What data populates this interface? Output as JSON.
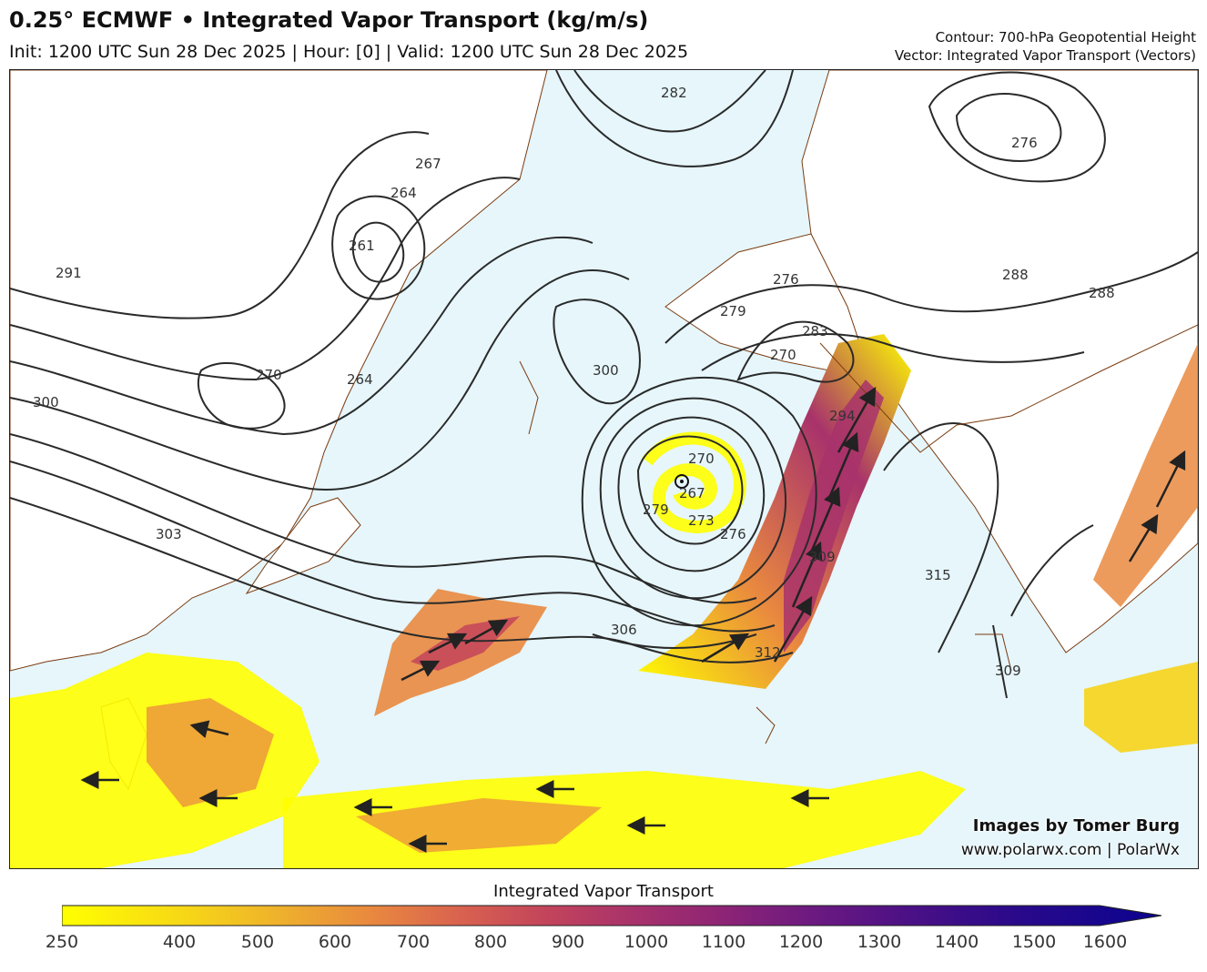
{
  "header": {
    "title": "0.25° ECMWF • Integrated Vapor Transport (kg/m/s)",
    "subtitle": "Init: 1200 UTC Sun 28 Dec 2025 | Hour: [0] | Valid: 1200 UTC Sun 28 Dec 2025",
    "contour_info": "Contour: 700-hPa Geopotential Height",
    "vector_info": "Vector: Integrated Vapor Transport (Vectors)"
  },
  "credits": {
    "line1": "Images by Tomer Burg",
    "line2": "www.polarwx.com | PolarWx"
  },
  "map": {
    "ocean_color": "#e6f6fb",
    "land_color": "#ffffff",
    "contour_color": "#2a2a2a",
    "coast_color": "#7a3b10",
    "contour_labels": [
      "291",
      "300",
      "303",
      "270",
      "264",
      "267",
      "264",
      "261",
      "282",
      "300",
      "306",
      "270",
      "267",
      "273",
      "279",
      "276",
      "279",
      "276",
      "270",
      "283",
      "294",
      "309",
      "312",
      "315",
      "309",
      "288",
      "288",
      "276"
    ]
  },
  "colorbar": {
    "title": "Integrated Vapor Transport",
    "ticks": [
      "250",
      "400",
      "500",
      "600",
      "700",
      "800",
      "900",
      "1000",
      "1100",
      "1200",
      "1300",
      "1400",
      "1500",
      "1600"
    ],
    "colors": [
      "#ffff00",
      "#f6d418",
      "#eeb02d",
      "#e9893f",
      "#d9634f",
      "#c3445b",
      "#a8326b",
      "#8e2475",
      "#6d1a80",
      "#4f1185",
      "#2c0a8a",
      "#0a0390"
    ]
  }
}
